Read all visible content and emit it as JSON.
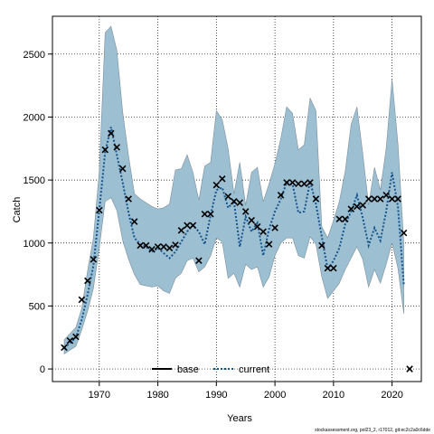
{
  "chart_data": {
    "type": "line",
    "xlabel": "Years",
    "ylabel": "Catch",
    "xlim": [
      1962,
      2025
    ],
    "ylim": [
      -100,
      2800
    ],
    "x_ticks": [
      1970,
      1980,
      1990,
      2000,
      2010,
      2020
    ],
    "y_ticks": [
      0,
      500,
      1000,
      1500,
      2000,
      2500
    ],
    "grid": true,
    "grid_style": "dotted",
    "legend_placement": "bottom-center",
    "colors": {
      "band": "#9dbfd2",
      "band_edge": "#7a8f9c",
      "current": "#14548c",
      "base": "#000000",
      "points": "#000000"
    },
    "series": [
      {
        "name": "base",
        "style": "solid",
        "values": []
      },
      {
        "name": "current",
        "style": "dotted",
        "x": [
          1964,
          1965,
          1966,
          1967,
          1968,
          1969,
          1970,
          1971,
          1972,
          1973,
          1974,
          1975,
          1976,
          1977,
          1978,
          1979,
          1980,
          1981,
          1982,
          1983,
          1984,
          1985,
          1986,
          1987,
          1988,
          1989,
          1990,
          1991,
          1992,
          1993,
          1994,
          1995,
          1996,
          1997,
          1998,
          1999,
          2000,
          2001,
          2002,
          2003,
          2004,
          2005,
          2006,
          2007,
          2008,
          2009,
          2010,
          2011,
          2012,
          2013,
          2014,
          2015,
          2016,
          2017,
          2018,
          2019,
          2020,
          2021,
          2022
        ],
        "values": [
          170,
          205,
          250,
          390,
          590,
          820,
          1260,
          1720,
          1920,
          1700,
          1480,
          1240,
          1040,
          990,
          970,
          930,
          960,
          920,
          880,
          930,
          1010,
          1090,
          1140,
          1090,
          990,
          1220,
          1420,
          1440,
          1280,
          1330,
          970,
          1210,
          1090,
          1160,
          900,
          1110,
          1250,
          1350,
          1480,
          1470,
          1240,
          1250,
          1490,
          1310,
          1050,
          790,
          860,
          960,
          1150,
          1250,
          1380,
          1200,
          980,
          1120,
          1020,
          1250,
          1560,
          1290,
          670
        ]
      }
    ],
    "band": {
      "x": [
        1964,
        1965,
        1966,
        1967,
        1968,
        1969,
        1970,
        1971,
        1972,
        1973,
        1974,
        1975,
        1976,
        1977,
        1978,
        1979,
        1980,
        1981,
        1982,
        1983,
        1984,
        1985,
        1986,
        1987,
        1988,
        1989,
        1990,
        1991,
        1992,
        1993,
        1994,
        1995,
        1996,
        1997,
        1998,
        1999,
        2000,
        2001,
        2002,
        2003,
        2004,
        2005,
        2006,
        2007,
        2008,
        2009,
        2010,
        2011,
        2012,
        2013,
        2014,
        2015,
        2016,
        2017,
        2018,
        2019,
        2020,
        2021,
        2022
      ],
      "lower": [
        120,
        150,
        180,
        310,
        460,
        640,
        960,
        1330,
        1360,
        1260,
        1020,
        870,
        750,
        670,
        660,
        650,
        660,
        620,
        600,
        720,
        760,
        860,
        880,
        770,
        810,
        900,
        1040,
        1010,
        720,
        760,
        650,
        830,
        790,
        810,
        650,
        730,
        900,
        1000,
        1040,
        1040,
        900,
        880,
        1050,
        990,
        730,
        560,
        620,
        680,
        790,
        880,
        970,
        870,
        650,
        790,
        680,
        830,
        1000,
        800,
        440
      ],
      "upper": [
        230,
        280,
        330,
        480,
        780,
        1040,
        1570,
        2670,
        2720,
        2530,
        2040,
        1690,
        1390,
        1350,
        1320,
        1290,
        1270,
        1280,
        1310,
        1580,
        1590,
        1700,
        1560,
        1340,
        1610,
        1640,
        2050,
        1980,
        1750,
        1390,
        1640,
        1300,
        1560,
        1600,
        1330,
        1470,
        1630,
        1830,
        2080,
        2030,
        1740,
        1780,
        2150,
        2050,
        1130,
        1040,
        1180,
        1330,
        1570,
        1940,
        2080,
        1710,
        1300,
        1600,
        1420,
        1750,
        2300,
        1790,
        1000
      ]
    },
    "points": {
      "x": [
        1964,
        1965,
        1966,
        1967,
        1968,
        1969,
        1970,
        1971,
        1972,
        1973,
        1974,
        1975,
        1976,
        1977,
        1978,
        1979,
        1980,
        1981,
        1982,
        1983,
        1984,
        1985,
        1986,
        1987,
        1988,
        1989,
        1990,
        1991,
        1992,
        1993,
        1994,
        1995,
        1996,
        1997,
        1998,
        1999,
        2000,
        2001,
        2002,
        2003,
        2004,
        2005,
        2006,
        2007,
        2008,
        2009,
        2010,
        2011,
        2012,
        2013,
        2014,
        2015,
        2016,
        2017,
        2018,
        2019,
        2020,
        2021,
        2022,
        2023
      ],
      "y": [
        170,
        225,
        255,
        550,
        700,
        870,
        1260,
        1740,
        1870,
        1760,
        1590,
        1350,
        1170,
        980,
        980,
        950,
        970,
        970,
        960,
        985,
        1100,
        1140,
        1140,
        860,
        1230,
        1230,
        1460,
        1510,
        1370,
        1330,
        1320,
        1250,
        1180,
        1130,
        1090,
        990,
        1120,
        1380,
        1480,
        1480,
        1470,
        1470,
        1480,
        1350,
        980,
        800,
        800,
        1190,
        1190,
        1270,
        1290,
        1300,
        1350,
        1350,
        1350,
        1380,
        1350,
        1350,
        1080,
        0
      ]
    },
    "footnote": "stockassessment.org, pol23_2, r17012, git:ec2c2a0c6dde"
  }
}
